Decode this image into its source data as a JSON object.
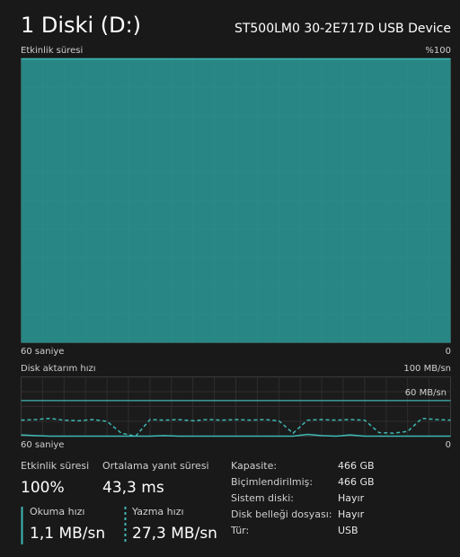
{
  "header": {
    "title": "1 Diski (D:)",
    "device": "ST500LM0 30-2E717D USB Device"
  },
  "activity_graph": {
    "label": "Etkinlik süresi",
    "max": {
      "value": 100,
      "label": "%100"
    },
    "min": 0,
    "span": {
      "value": 60,
      "label": "60 saniye"
    },
    "end": 0,
    "color": "#2a9a97",
    "line_color": "#3fb8b4",
    "values": [
      100,
      100,
      100,
      100,
      100,
      100,
      100,
      100,
      100,
      100,
      100,
      100,
      100
    ]
  },
  "transfer_graph": {
    "label": "Disk aktarım hızı",
    "max": {
      "value": 100,
      "label": "100 MB/sn"
    },
    "min": 0,
    "reference": {
      "value": 60,
      "label": "60 MB/sn"
    },
    "span": {
      "value": 60,
      "label": "60 saniye"
    },
    "end": 0,
    "color": "#3fb8b4",
    "series": [
      {
        "style": "solid",
        "values": [
          2,
          1,
          0,
          0,
          0,
          0,
          0,
          0,
          0,
          0,
          1,
          0,
          0,
          0,
          0,
          0,
          0,
          0,
          0,
          0,
          3,
          1,
          0,
          2,
          0,
          0,
          0,
          0,
          0,
          0,
          0
        ]
      },
      {
        "style": "dashed",
        "values": [
          27,
          28,
          30,
          27,
          26,
          28,
          25,
          5,
          0,
          28,
          27,
          28,
          26,
          28,
          27,
          28,
          27,
          28,
          26,
          5,
          27,
          28,
          27,
          28,
          27,
          6,
          5,
          8,
          30,
          28,
          27
        ]
      }
    ]
  },
  "stats": [
    {
      "label": "Etkinlik süresi",
      "value": "100%"
    },
    {
      "label": "Ortalama yanıt süresi",
      "value": "43,3 ms"
    },
    {
      "label": "Okuma hızı",
      "value": "1,1 MB/sn"
    },
    {
      "label": "Yazma hızı",
      "value": "27,3 MB/sn"
    }
  ],
  "properties": [
    [
      "Kapasite:",
      "466 GB"
    ],
    [
      "Biçimlendirilmiş:",
      "466 GB"
    ],
    [
      "Sistem diski:",
      "Hayır"
    ],
    [
      "Disk belleği dosyası:",
      "Hayır"
    ],
    [
      "Tür:",
      "USB"
    ]
  ]
}
